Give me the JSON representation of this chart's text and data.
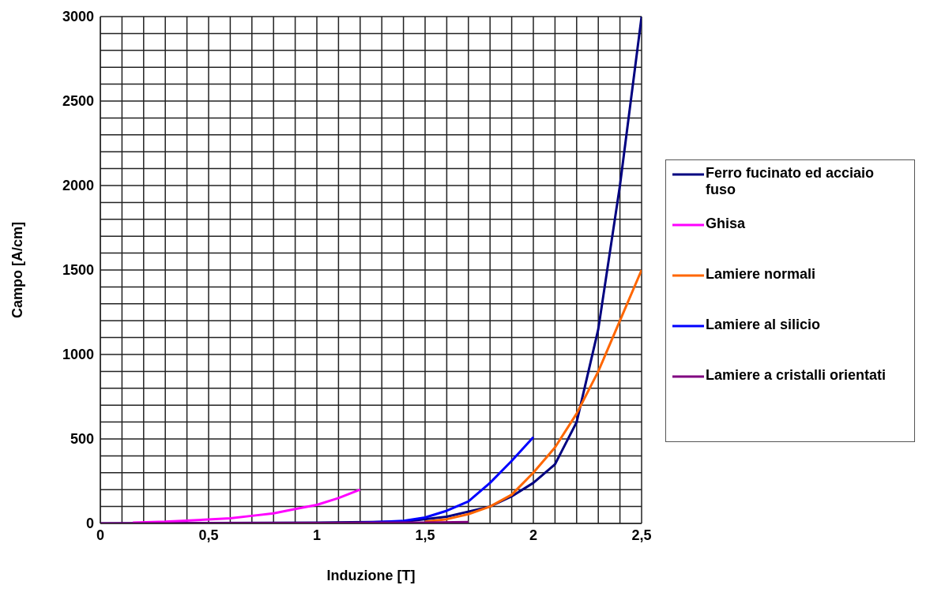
{
  "chart_data": {
    "type": "line",
    "xlabel": "Induzione [T]",
    "ylabel": "Campo [A/cm]",
    "xlim": [
      0,
      2.5
    ],
    "ylim": [
      0,
      3000
    ],
    "xticks": [
      0,
      {
        "value": 0.1,
        "label": null
      },
      {
        "value": 0.2,
        "label": null
      },
      {
        "value": 0.3,
        "label": null
      },
      {
        "value": 0.4,
        "label": null
      },
      {
        "value": 0.5,
        "label": "0,5"
      },
      {
        "value": 0.6,
        "label": null
      },
      {
        "value": 0.7,
        "label": null
      },
      {
        "value": 0.8,
        "label": null
      },
      {
        "value": 0.9,
        "label": null
      },
      1,
      {
        "value": 1.1,
        "label": null
      },
      {
        "value": 1.2,
        "label": null
      },
      {
        "value": 1.3,
        "label": null
      },
      {
        "value": 1.4,
        "label": null
      },
      {
        "value": 1.5,
        "label": "1,5"
      },
      {
        "value": 1.6,
        "label": null
      },
      {
        "value": 1.7,
        "label": null
      },
      {
        "value": 1.8,
        "label": null
      },
      {
        "value": 1.9,
        "label": null
      },
      2,
      {
        "value": 2.1,
        "label": null
      },
      {
        "value": 2.2,
        "label": null
      },
      {
        "value": 2.3,
        "label": null
      },
      {
        "value": 2.4,
        "label": null
      },
      {
        "value": 2.5,
        "label": "2,5"
      }
    ],
    "yticks": [
      0,
      {
        "value": 100,
        "label": null
      },
      {
        "value": 200,
        "label": null
      },
      {
        "value": 300,
        "label": null
      },
      {
        "value": 400,
        "label": null
      },
      500,
      {
        "value": 600,
        "label": null
      },
      {
        "value": 700,
        "label": null
      },
      {
        "value": 800,
        "label": null
      },
      {
        "value": 900,
        "label": null
      },
      1000,
      {
        "value": 1100,
        "label": null
      },
      {
        "value": 1200,
        "label": null
      },
      {
        "value": 1300,
        "label": null
      },
      {
        "value": 1400,
        "label": null
      },
      1500,
      {
        "value": 1600,
        "label": null
      },
      {
        "value": 1700,
        "label": null
      },
      {
        "value": 1800,
        "label": null
      },
      {
        "value": 1900,
        "label": null
      },
      2000,
      {
        "value": 2100,
        "label": null
      },
      {
        "value": 2200,
        "label": null
      },
      {
        "value": 2300,
        "label": null
      },
      {
        "value": 2400,
        "label": null
      },
      2500,
      {
        "value": 2600,
        "label": null
      },
      {
        "value": 2700,
        "label": null
      },
      {
        "value": 2800,
        "label": null
      },
      {
        "value": 2900,
        "label": null
      },
      3000
    ],
    "grid": true,
    "legend": "right",
    "marker": "none",
    "line_style": "solid",
    "series": [
      {
        "name": "Ferro fucinato ed acciaio fuso",
        "color": "#000080",
        "x": [
          0,
          0.5,
          1,
          1.4,
          1.6,
          1.8,
          1.9,
          2.0,
          2.1,
          2.2,
          2.3,
          2.4,
          2.5
        ],
        "values": [
          0,
          2,
          5,
          10,
          40,
          100,
          160,
          240,
          350,
          600,
          1150,
          2000,
          3000
        ]
      },
      {
        "name": "Ghisa",
        "color": "#ff00ff",
        "x": [
          0.15,
          0.3,
          0.45,
          0.6,
          0.7,
          0.8,
          0.9,
          1.0,
          1.1,
          1.2
        ],
        "values": [
          5,
          10,
          20,
          30,
          45,
          60,
          85,
          110,
          150,
          200
        ]
      },
      {
        "name": "Lamiere normali",
        "color": "#ff6600",
        "x": [
          1.5,
          1.6,
          1.7,
          1.8,
          1.9,
          2.0,
          2.1,
          2.2,
          2.3,
          2.4,
          2.5
        ],
        "values": [
          10,
          25,
          55,
          100,
          170,
          300,
          450,
          650,
          900,
          1200,
          1500
        ]
      },
      {
        "name": "Lamiere al silicio",
        "color": "#0000ff",
        "x": [
          0.95,
          1.2,
          1.4,
          1.5,
          1.6,
          1.7,
          1.8,
          1.9,
          2.0
        ],
        "values": [
          0,
          3,
          15,
          35,
          75,
          130,
          240,
          370,
          510
        ]
      },
      {
        "name": "Lamiere a cristalli orientati",
        "color": "#800080",
        "x": [
          0,
          1,
          1.5,
          1.7
        ],
        "values": [
          0,
          2,
          5,
          8
        ]
      }
    ]
  }
}
